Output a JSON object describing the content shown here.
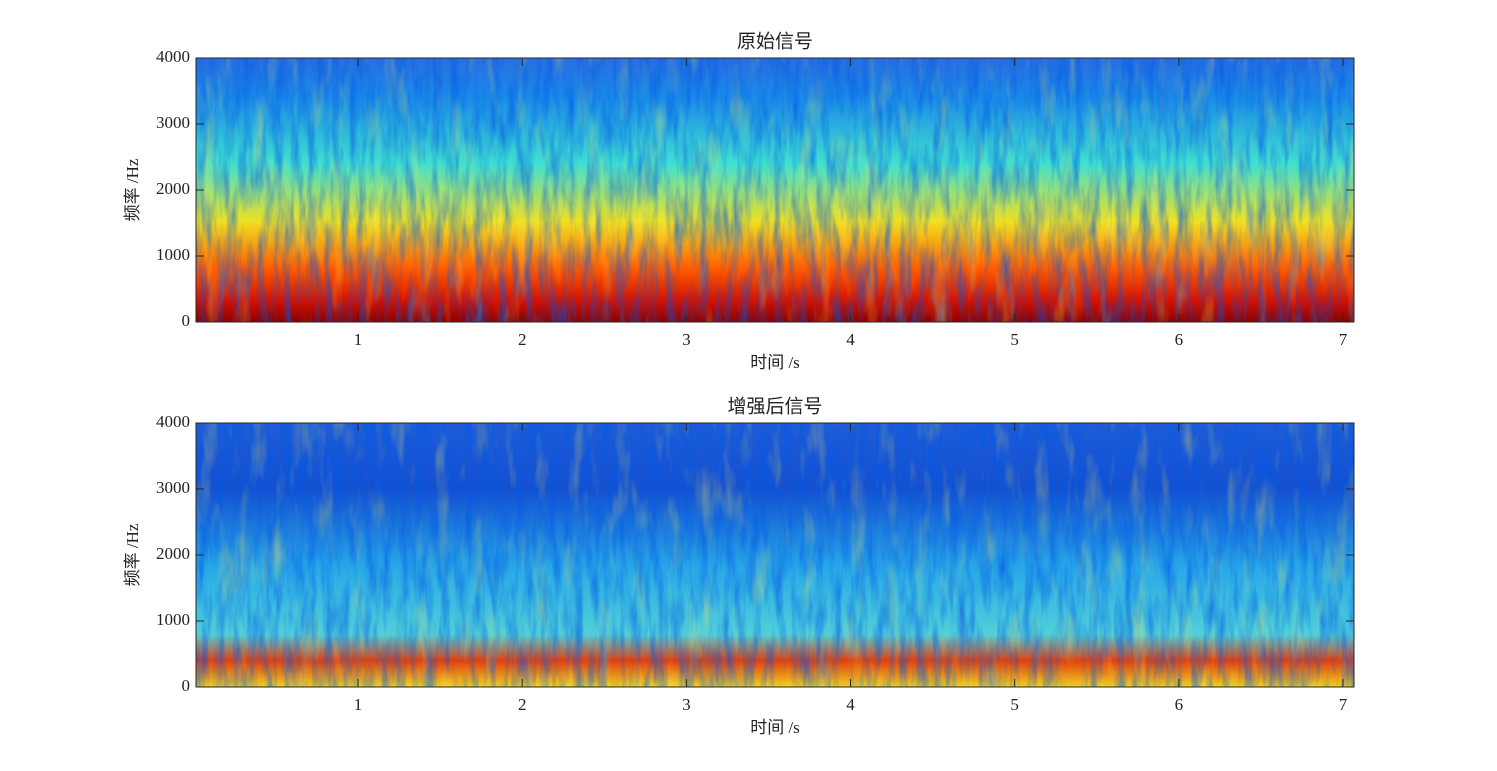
{
  "chart_data": [
    {
      "type": "spectrogram",
      "title": "原始信号",
      "xlabel": "时间 /s",
      "ylabel": "频率 /Hz",
      "xlim": [
        0.013,
        7.067
      ],
      "xticks": [
        1,
        2,
        3,
        4,
        5,
        6,
        7
      ],
      "ylim": [
        0,
        4000
      ],
      "yticks": [
        0,
        1000,
        2000,
        3000,
        4000
      ],
      "colormap": "jet"
    },
    {
      "type": "spectrogram",
      "title": "增强后信号",
      "xlabel": "时间 /s",
      "ylabel": "频率 /Hz",
      "xlim": [
        0.013,
        7.067
      ],
      "xticks": [
        1,
        2,
        3,
        4,
        5,
        6,
        7
      ],
      "ylim": [
        0,
        4000
      ],
      "yticks": [
        0,
        1000,
        2000,
        3000,
        4000
      ],
      "colormap": "jet"
    }
  ]
}
